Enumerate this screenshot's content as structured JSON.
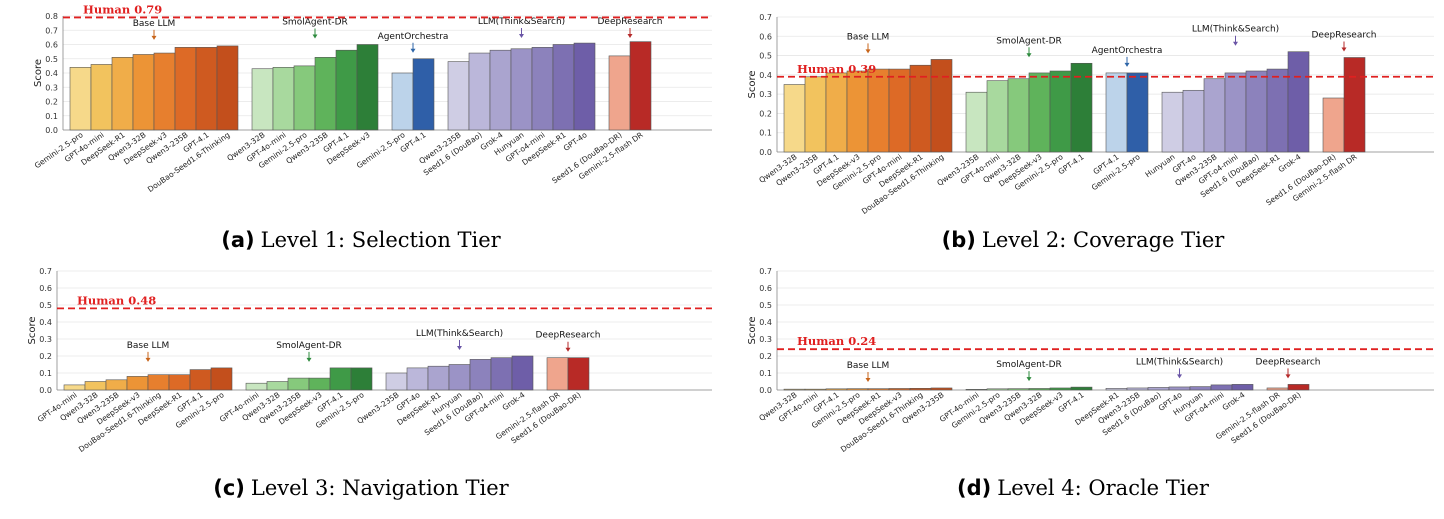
{
  "chart_data": [
    {
      "id": "a",
      "type": "bar",
      "caption_label": "(a)",
      "caption_text": "Level 1: Selection Tier",
      "ylabel": "Score",
      "ylim": [
        0,
        0.8
      ],
      "yticks": [
        "0.0",
        "0.1",
        "0.2",
        "0.3",
        "0.4",
        "0.5",
        "0.6",
        "0.7",
        "0.8"
      ],
      "grid": true,
      "human": {
        "label": "Human 0.79",
        "value": 0.79
      },
      "groups": [
        {
          "name": "Base LLM",
          "arrow_color": "#c8651b",
          "palette": [
            "#f6d98a",
            "#f2c35e",
            "#f0ad49",
            "#ec9436",
            "#e77f2e",
            "#dd6a26",
            "#cf5a20",
            "#c34f1c",
            "#b84519"
          ],
          "categories": [
            "Gemini-2.5-pro",
            "GPT-4o-mini",
            "DeepSeek-R1",
            "Qwen3-32B",
            "DeepSeek-v3",
            "Qwen3-235B",
            "GPT-4.1",
            "DouBao-Seed1.6-Thinking"
          ],
          "values": [
            0.44,
            0.46,
            0.51,
            0.53,
            0.54,
            0.58,
            0.58,
            0.59
          ]
        },
        {
          "name": "SmolAgent-DR",
          "arrow_color": "#2e8b3e",
          "palette": [
            "#c8e6c0",
            "#a8d99e",
            "#86c97c",
            "#5fb35b",
            "#3f9a47",
            "#2d7f38"
          ],
          "categories": [
            "Qwen3-32B",
            "GPT-4o-mini",
            "Gemini-2.5-pro",
            "Qwen3-235B",
            "GPT-4.1",
            "DeepSeek-v3"
          ],
          "values": [
            0.43,
            0.44,
            0.45,
            0.51,
            0.56,
            0.6
          ]
        },
        {
          "name": "AgentOrchestra",
          "arrow_color": "#2f66a8",
          "palette": [
            "#bcd3ea",
            "#2f5fa8"
          ],
          "categories": [
            "Gemini-2.5-pro",
            "GPT-4.1"
          ],
          "values": [
            0.4,
            0.5
          ]
        },
        {
          "name": "LLM(Think&Search)",
          "arrow_color": "#6a55a6",
          "palette": [
            "#cfcde4",
            "#bbb7da",
            "#aaa4cf",
            "#9b93c6",
            "#8c82bc",
            "#7d70b2",
            "#6e5ea8",
            "#5f4a9d"
          ],
          "categories": [
            "Qwen3-235B",
            "Seed1.6 (DouBao)",
            "Grok-4",
            "Hunyuan",
            "GPT-o4-mini",
            "DeepSeek-R1",
            "GPT-4o"
          ],
          "values": [
            0.48,
            0.54,
            0.56,
            0.57,
            0.58,
            0.6,
            0.61
          ]
        },
        {
          "name": "DeepResearch",
          "arrow_color": "#b52a2a",
          "palette": [
            "#efa58d",
            "#b82a26"
          ],
          "categories": [
            "Seed1.6 (DouBao-DR)",
            "Gemini-2.5-flash DR"
          ],
          "values": [
            0.52,
            0.62
          ]
        }
      ]
    },
    {
      "id": "b",
      "type": "bar",
      "caption_label": "(b)",
      "caption_text": "Level 2: Coverage Tier",
      "ylabel": "Score",
      "ylim": [
        0,
        0.7
      ],
      "yticks": [
        "0.0",
        "0.1",
        "0.2",
        "0.3",
        "0.4",
        "0.5",
        "0.6",
        "0.7"
      ],
      "grid": true,
      "human": {
        "label": "Human 0.39",
        "value": 0.39
      },
      "groups": [
        {
          "name": "Base LLM",
          "arrow_color": "#c8651b",
          "palette": [
            "#f6d98a",
            "#f2c35e",
            "#f0ad49",
            "#ec9436",
            "#e77f2e",
            "#dd6a26",
            "#cf5a20",
            "#c34f1c",
            "#b84519"
          ],
          "categories": [
            "Qwen3-32B",
            "Qwen3-235B",
            "GPT-4.1",
            "DeepSeek-v3",
            "Gemini-2.5-pro",
            "GPT-4o-mini",
            "DeepSeek-R1",
            "DouBao-Seed1.6-Thinking"
          ],
          "values": [
            0.35,
            0.39,
            0.41,
            0.42,
            0.43,
            0.43,
            0.45,
            0.48
          ]
        },
        {
          "name": "SmolAgent-DR",
          "arrow_color": "#2e8b3e",
          "palette": [
            "#c8e6c0",
            "#a8d99e",
            "#86c97c",
            "#5fb35b",
            "#3f9a47",
            "#2d7f38"
          ],
          "categories": [
            "Qwen3-235B",
            "GPT-4o-mini",
            "Qwen3-32B",
            "DeepSeek-v3",
            "Gemini-2.5-pro",
            "GPT-4.1"
          ],
          "values": [
            0.31,
            0.37,
            0.38,
            0.41,
            0.42,
            0.46
          ]
        },
        {
          "name": "AgentOrchestra",
          "arrow_color": "#2f66a8",
          "palette": [
            "#bcd3ea",
            "#2f5fa8"
          ],
          "categories": [
            "GPT-4.1",
            "Gemini-2.5-pro"
          ],
          "values": [
            0.41,
            0.41
          ]
        },
        {
          "name": "LLM(Think&Search)",
          "arrow_color": "#6a55a6",
          "palette": [
            "#cfcde4",
            "#bbb7da",
            "#aaa4cf",
            "#9b93c6",
            "#8c82bc",
            "#7d70b2",
            "#6e5ea8",
            "#5f4a9d"
          ],
          "categories": [
            "Hunyuan",
            "GPT-4o",
            "Qwen3-235B",
            "GPT-o4-mini",
            "Seed1.6 (DouBao)",
            "DeepSeek-R1",
            "Grok-4"
          ],
          "values": [
            0.31,
            0.32,
            0.38,
            0.41,
            0.42,
            0.43,
            0.52
          ]
        },
        {
          "name": "DeepResearch",
          "arrow_color": "#b52a2a",
          "palette": [
            "#efa58d",
            "#b82a26"
          ],
          "categories": [
            "Seed1.6 (DouBao-DR)",
            "Gemini-2.5-flash DR"
          ],
          "values": [
            0.28,
            0.49
          ]
        }
      ]
    },
    {
      "id": "c",
      "type": "bar",
      "caption_label": "(c)",
      "caption_text": "Level 3: Navigation Tier",
      "ylabel": "Score",
      "ylim": [
        0,
        0.7
      ],
      "yticks": [
        "0.0",
        "0.1",
        "0.2",
        "0.3",
        "0.4",
        "0.5",
        "0.6",
        "0.7"
      ],
      "grid": true,
      "human": {
        "label": "Human 0.48",
        "value": 0.48
      },
      "groups": [
        {
          "name": "Base LLM",
          "arrow_color": "#c8651b",
          "palette": [
            "#f6d98a",
            "#f2c35e",
            "#f0ad49",
            "#ec9436",
            "#e77f2e",
            "#dd6a26",
            "#cf5a20",
            "#c34f1c",
            "#b84519"
          ],
          "categories": [
            "GPT-4o-mini",
            "Qwen3-32B",
            "Qwen3-235B",
            "DeepSeek-v3",
            "DouBao-Seed1.6-Thinking",
            "DeepSeek-R1",
            "GPT-4.1",
            "Gemini-2.5-pro"
          ],
          "values": [
            0.03,
            0.05,
            0.06,
            0.08,
            0.09,
            0.09,
            0.12,
            0.13
          ]
        },
        {
          "name": "SmolAgent-DR",
          "arrow_color": "#2e8b3e",
          "palette": [
            "#c8e6c0",
            "#a8d99e",
            "#86c97c",
            "#5fb35b",
            "#3f9a47",
            "#2d7f38"
          ],
          "categories": [
            "GPT-4o-mini",
            "Qwen3-32B",
            "Qwen3-235B",
            "DeepSeek-v3",
            "GPT-4.1",
            "Gemini-2.5-pro"
          ],
          "values": [
            0.04,
            0.05,
            0.07,
            0.07,
            0.13,
            0.13
          ]
        },
        {
          "name": "LLM(Think&Search)",
          "arrow_color": "#6a55a6",
          "palette": [
            "#cfcde4",
            "#bbb7da",
            "#aaa4cf",
            "#9b93c6",
            "#8c82bc",
            "#7d70b2",
            "#6e5ea8",
            "#5f4a9d"
          ],
          "categories": [
            "Qwen3-235B",
            "GPT-4o",
            "DeepSeek-R1",
            "Hunyuan",
            "Seed1.6 (DouBao)",
            "GPT-o4-mini",
            "Grok-4"
          ],
          "values": [
            0.1,
            0.13,
            0.14,
            0.15,
            0.18,
            0.19,
            0.2
          ]
        },
        {
          "name": "DeepResearch",
          "arrow_color": "#b52a2a",
          "palette": [
            "#efa58d",
            "#b82a26"
          ],
          "categories": [
            "Gemini-2.5-flash DR",
            "Seed1.6 (DouBao-DR)"
          ],
          "values": [
            0.19,
            0.19
          ]
        }
      ]
    },
    {
      "id": "d",
      "type": "bar",
      "caption_label": "(d)",
      "caption_text": "Level 4: Oracle Tier",
      "ylabel": "Score",
      "ylim": [
        0,
        0.7
      ],
      "yticks": [
        "0.0",
        "0.1",
        "0.2",
        "0.3",
        "0.4",
        "0.5",
        "0.6",
        "0.7"
      ],
      "grid": true,
      "human": {
        "label": "Human 0.24",
        "value": 0.24
      },
      "groups": [
        {
          "name": "Base LLM",
          "arrow_color": "#c8651b",
          "palette": [
            "#f6d98a",
            "#f2c35e",
            "#f0ad49",
            "#ec9436",
            "#e77f2e",
            "#dd6a26",
            "#cf5a20",
            "#c34f1c",
            "#b84519"
          ],
          "categories": [
            "Qwen3-32B",
            "GPT-4o-mini",
            "GPT-4.1",
            "Gemini-2.5-pro",
            "DeepSeek-R1",
            "DeepSeek-v3",
            "DouBao-Seed1.6-Thinking",
            "Qwen3-235B"
          ],
          "values": [
            0.005,
            0.005,
            0.007,
            0.008,
            0.008,
            0.009,
            0.01,
            0.012
          ]
        },
        {
          "name": "SmolAgent-DR",
          "arrow_color": "#2e8b3e",
          "palette": [
            "#c8e6c0",
            "#a8d99e",
            "#86c97c",
            "#5fb35b",
            "#3f9a47",
            "#2d7f38"
          ],
          "categories": [
            "GPT-4o-mini",
            "Gemini-2.5-pro",
            "Qwen3-235B",
            "Qwen3-32B",
            "DeepSeek-v3",
            "GPT-4.1"
          ],
          "values": [
            0.004,
            0.007,
            0.008,
            0.009,
            0.012,
            0.017
          ]
        },
        {
          "name": "LLM(Think&Search)",
          "arrow_color": "#6a55a6",
          "palette": [
            "#cfcde4",
            "#bbb7da",
            "#aaa4cf",
            "#9b93c6",
            "#8c82bc",
            "#7d70b2",
            "#6e5ea8",
            "#5f4a9d"
          ],
          "categories": [
            "DeepSeek-R1",
            "Qwen3-235B",
            "Seed1.6 (DouBao)",
            "GPT-4o",
            "Hunyuan",
            "GPT-o4-mini",
            "Grok-4"
          ],
          "values": [
            0.01,
            0.012,
            0.015,
            0.018,
            0.02,
            0.03,
            0.033
          ]
        },
        {
          "name": "DeepResearch",
          "arrow_color": "#b52a2a",
          "palette": [
            "#efa58d",
            "#b82a26"
          ],
          "categories": [
            "Gemini-2.5-flash DR",
            "Seed1.6 (DouBao-DR)"
          ],
          "values": [
            0.012,
            0.033
          ]
        }
      ]
    }
  ]
}
